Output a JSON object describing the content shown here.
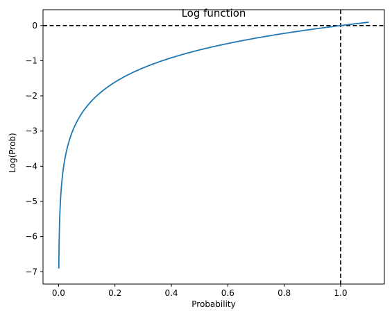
{
  "chart_data": {
    "type": "line",
    "title": "Log function",
    "xlabel": "Probability",
    "ylabel": "Log(Prob)",
    "xlim": [
      -0.055,
      1.155
    ],
    "ylim": [
      -7.35,
      0.45
    ],
    "xticks": [
      0.0,
      0.2,
      0.4,
      0.6,
      0.8,
      1.0
    ],
    "xtick_labels": [
      "0.0",
      "0.2",
      "0.4",
      "0.6",
      "0.8",
      "1.0"
    ],
    "yticks": [
      0,
      -1,
      -2,
      -3,
      -4,
      -5,
      -6,
      -7
    ],
    "ytick_labels": [
      "0",
      "−1",
      "−2",
      "−3",
      "−4",
      "−5",
      "−6",
      "−7"
    ],
    "grid": false,
    "series": [
      {
        "color": "#1f77b4",
        "function": "ln(x)",
        "x_range": [
          0.001,
          1.1
        ]
      }
    ],
    "reference_lines": [
      {
        "orientation": "horizontal",
        "value": 0,
        "style": "dashed",
        "color": "#000000"
      },
      {
        "orientation": "vertical",
        "value": 1.0,
        "style": "dashed",
        "color": "#000000"
      }
    ]
  }
}
